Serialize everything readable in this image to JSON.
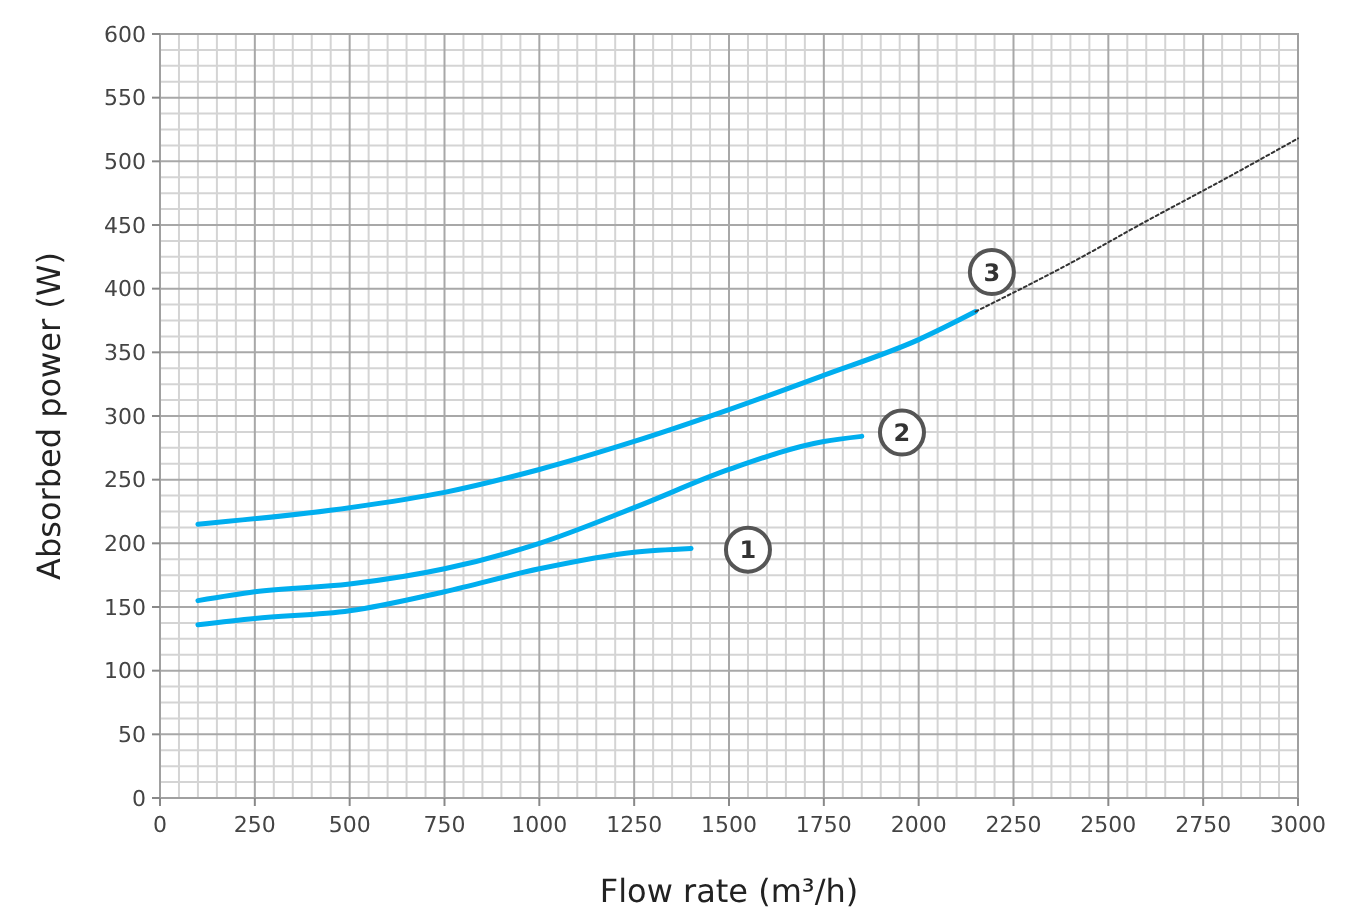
{
  "chart_data": {
    "type": "line",
    "xlabel": "Flow rate (m³/h)",
    "ylabel": "Absorbed power (W)",
    "xlim": [
      0,
      3000
    ],
    "ylim": [
      0,
      600
    ],
    "xticks": [
      0,
      250,
      500,
      750,
      1000,
      1250,
      1500,
      1750,
      2000,
      2250,
      2500,
      2750,
      3000
    ],
    "yticks": [
      0,
      50,
      100,
      150,
      200,
      250,
      300,
      350,
      400,
      450,
      500,
      550,
      600
    ],
    "grid": true,
    "marker": "none",
    "line_style": "solid",
    "series": [
      {
        "color": "#00aeef",
        "x": [
          100,
          250,
          500,
          750,
          1000,
          1250,
          1400
        ],
        "values": [
          136,
          141,
          147,
          162,
          180,
          193,
          196
        ]
      },
      {
        "color": "#00aeef",
        "x": [
          100,
          250,
          500,
          750,
          1000,
          1250,
          1500,
          1750,
          1850
        ],
        "values": [
          155,
          162,
          168,
          180,
          200,
          228,
          258,
          280,
          284
        ]
      },
      {
        "color": "#00aeef",
        "x": [
          100,
          500,
          750,
          1000,
          1250,
          1500,
          1750,
          2000,
          2150
        ],
        "values": [
          215,
          228,
          240,
          258,
          280,
          305,
          332,
          360,
          382
        ]
      },
      {
        "color": "#333333",
        "line_style": "dotted",
        "x": [
          2150,
          2400,
          2600,
          2800,
          3000
        ],
        "values": [
          382,
          420,
          453,
          485,
          518
        ]
      }
    ],
    "annotations": [
      {
        "text": "1",
        "x": 1550,
        "y": 195
      },
      {
        "text": "2",
        "x": 1956,
        "y": 287
      },
      {
        "text": "3",
        "x": 2193,
        "y": 413
      }
    ]
  }
}
